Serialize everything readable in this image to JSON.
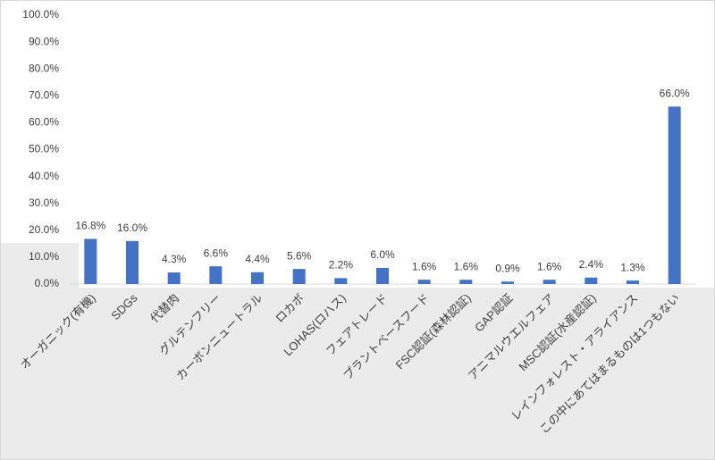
{
  "chart_data": {
    "type": "bar",
    "categories": [
      "オーガニック(有機)",
      "SDGs",
      "代替肉",
      "グルテンフリー",
      "カーボンニュートラル",
      "ロカボ",
      "LOHAS(ロハス)",
      "フェアトレード",
      "プラントベースフード",
      "FSC認証(森林認証)",
      "GAP認証",
      "アニマルウエルフェア",
      "MSC認証(水産認証)",
      "レインフォレスト・アライアンス",
      "この中にあてはまるものは1つもない"
    ],
    "values": [
      16.8,
      16.0,
      4.3,
      6.6,
      4.4,
      5.6,
      2.2,
      6.0,
      1.6,
      1.6,
      0.9,
      1.6,
      2.4,
      1.3,
      66.0
    ],
    "value_labels": [
      "16.8%",
      "16.0%",
      "4.3%",
      "6.6%",
      "4.4%",
      "5.6%",
      "2.2%",
      "6.0%",
      "1.6%",
      "1.6%",
      "0.9%",
      "1.6%",
      "2.4%",
      "1.3%",
      "66.0%"
    ],
    "color": "#4472c4",
    "ylim": [
      0,
      100
    ],
    "yticks": [
      {
        "value": 0,
        "label": "0.0%"
      },
      {
        "value": 10,
        "label": "10.0%"
      },
      {
        "value": 20,
        "label": "20.0%"
      },
      {
        "value": 30,
        "label": "30.0%"
      },
      {
        "value": 40,
        "label": "40.0%"
      },
      {
        "value": 50,
        "label": "50.0%"
      },
      {
        "value": 60,
        "label": "60.0%"
      },
      {
        "value": 70,
        "label": "70.0%"
      },
      {
        "value": 80,
        "label": "80.0%"
      },
      {
        "value": 90,
        "label": "90.0%"
      },
      {
        "value": 100,
        "label": "100.0%"
      }
    ],
    "grid": false
  }
}
